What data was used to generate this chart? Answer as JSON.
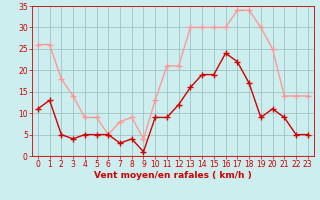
{
  "hours": [
    0,
    1,
    2,
    3,
    4,
    5,
    6,
    7,
    8,
    9,
    10,
    11,
    12,
    13,
    14,
    15,
    16,
    17,
    18,
    19,
    20,
    21,
    22,
    23
  ],
  "avg_wind": [
    11,
    13,
    5,
    4,
    5,
    5,
    5,
    3,
    4,
    1,
    9,
    9,
    12,
    16,
    19,
    19,
    24,
    22,
    17,
    9,
    11,
    9,
    5,
    5
  ],
  "gusts": [
    26,
    26,
    18,
    14,
    9,
    9,
    5,
    8,
    9,
    4,
    13,
    21,
    21,
    30,
    30,
    30,
    30,
    34,
    34,
    30,
    25,
    14,
    14,
    14
  ],
  "avg_color": "#cc0000",
  "gust_color": "#ff9999",
  "bg_color": "#cceeee",
  "grid_color": "#99bbbb",
  "xlabel": "Vent moyen/en rafales ( km/h )",
  "ylim": [
    0,
    35
  ],
  "yticks": [
    0,
    5,
    10,
    15,
    20,
    25,
    30,
    35
  ],
  "axis_color": "#cc0000",
  "marker": "+",
  "linewidth": 1.0,
  "markersize": 4
}
